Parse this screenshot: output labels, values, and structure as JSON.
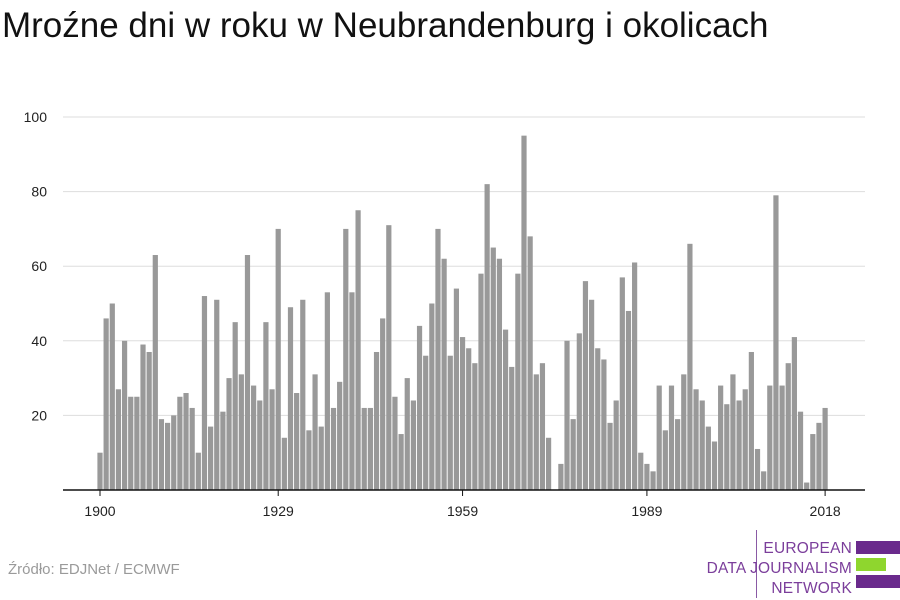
{
  "title": "Mroźne dni w roku w Neubrandenburg i okolicach",
  "source": "Źródło: EDJNet / ECMWF",
  "logo": {
    "line1": "EUROPEAN",
    "line2": "DATA JOURNALISM",
    "line3": "NETWORK",
    "colors": {
      "purple": "#6a2a8c",
      "green": "#8fd62e"
    }
  },
  "colors": {
    "bar": "#999999",
    "grid": "#dddddd",
    "axis": "#111111"
  },
  "chart_data": {
    "type": "bar",
    "title": "Mroźne dni w roku w Neubrandenburg i okolicach",
    "xlabel": "",
    "ylabel": "",
    "ylim": [
      0,
      100
    ],
    "yticks": [
      20,
      40,
      60,
      80,
      100
    ],
    "xticks": [
      1900,
      1929,
      1959,
      1989,
      2018
    ],
    "grid": true,
    "x": [
      1900,
      1901,
      1902,
      1903,
      1904,
      1905,
      1906,
      1907,
      1908,
      1909,
      1910,
      1911,
      1912,
      1913,
      1914,
      1915,
      1916,
      1917,
      1918,
      1919,
      1920,
      1921,
      1922,
      1923,
      1924,
      1925,
      1926,
      1927,
      1928,
      1929,
      1930,
      1931,
      1932,
      1933,
      1934,
      1935,
      1936,
      1937,
      1938,
      1939,
      1940,
      1941,
      1942,
      1943,
      1944,
      1945,
      1946,
      1947,
      1948,
      1949,
      1950,
      1951,
      1952,
      1953,
      1954,
      1955,
      1956,
      1957,
      1958,
      1959,
      1960,
      1961,
      1962,
      1963,
      1964,
      1965,
      1966,
      1967,
      1968,
      1969,
      1970,
      1971,
      1972,
      1973,
      1974,
      1975,
      1976,
      1977,
      1978,
      1979,
      1980,
      1981,
      1982,
      1983,
      1984,
      1985,
      1986,
      1987,
      1988,
      1989,
      1990,
      1991,
      1992,
      1993,
      1994,
      1995,
      1996,
      1997,
      1998,
      1999,
      2000,
      2001,
      2002,
      2003,
      2004,
      2005,
      2006,
      2007,
      2008,
      2009,
      2010,
      2011,
      2012,
      2013,
      2014,
      2015,
      2016,
      2017,
      2018
    ],
    "values": [
      10,
      46,
      50,
      27,
      40,
      25,
      25,
      39,
      37,
      63,
      19,
      18,
      20,
      25,
      26,
      22,
      10,
      52,
      17,
      51,
      21,
      30,
      45,
      31,
      63,
      28,
      24,
      45,
      27,
      70,
      14,
      49,
      26,
      51,
      16,
      31,
      17,
      53,
      22,
      29,
      70,
      53,
      75,
      22,
      22,
      37,
      46,
      71,
      25,
      15,
      30,
      24,
      44,
      36,
      50,
      70,
      62,
      36,
      54,
      41,
      38,
      34,
      58,
      82,
      65,
      62,
      43,
      33,
      58,
      95,
      68,
      31,
      34,
      14,
      0,
      7,
      40,
      19,
      42,
      56,
      51,
      38,
      35,
      18,
      24,
      57,
      48,
      61,
      10,
      7,
      5,
      28,
      16,
      28,
      19,
      31,
      66,
      27,
      24,
      17,
      13,
      28,
      23,
      31,
      24,
      27,
      37,
      11,
      5,
      28,
      79,
      28,
      34,
      41,
      21,
      2,
      15,
      18,
      22
    ]
  }
}
